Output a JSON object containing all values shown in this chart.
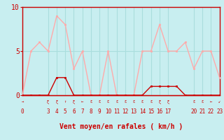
{
  "title": "",
  "xlabel": "Vent moyen/en rafales ( km/h )",
  "bg_color": "#c8eef0",
  "line_color_avg": "#cc0000",
  "line_color_gust": "#ffaaaa",
  "grid_color": "#aadddd",
  "x_hours": [
    0,
    1,
    2,
    3,
    4,
    5,
    6,
    7,
    8,
    9,
    10,
    11,
    12,
    13,
    14,
    15,
    16,
    17,
    18,
    19,
    20,
    21,
    22,
    23
  ],
  "avg_wind": [
    0,
    0,
    0,
    0,
    2,
    2,
    0,
    0,
    0,
    0,
    0,
    0,
    0,
    0,
    0,
    1,
    1,
    1,
    1,
    0,
    0,
    0,
    0,
    0
  ],
  "gust_wind": [
    0,
    5,
    6,
    5,
    9,
    8,
    3,
    5,
    0,
    0,
    5,
    0,
    0,
    0,
    5,
    5,
    8,
    5,
    5,
    6,
    3,
    5,
    5,
    2
  ],
  "yticks": [
    0,
    5,
    10
  ],
  "xtick_labels": [
    "0",
    "3",
    "4",
    "5",
    "6",
    "7",
    "8",
    "9",
    "10",
    "11",
    "12",
    "13",
    "14",
    "15",
    "16",
    "17",
    "20",
    "21",
    "22",
    "23"
  ],
  "xtick_pos": [
    0,
    3,
    4,
    5,
    6,
    7,
    8,
    9,
    10,
    11,
    12,
    13,
    14,
    15,
    16,
    17,
    20,
    21,
    22,
    23
  ],
  "ylim": [
    0,
    10
  ],
  "xlim": [
    0,
    23
  ]
}
